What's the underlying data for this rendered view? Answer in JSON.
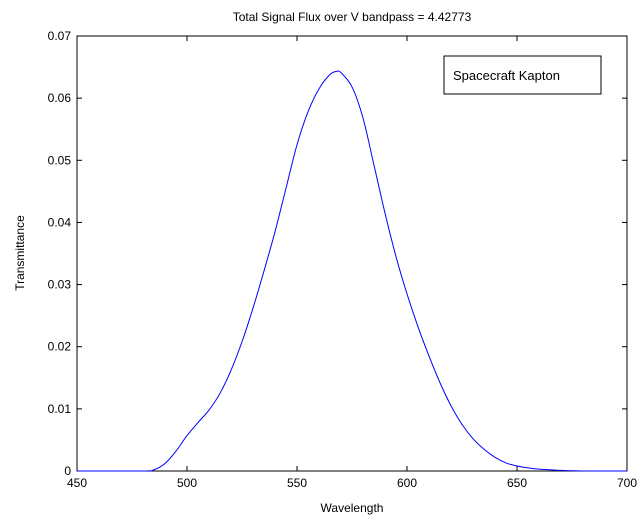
{
  "chart_data": {
    "type": "line",
    "title": "Total Signal Flux over V bandpass = 4.42773",
    "xlabel": "Wavelength",
    "ylabel": "Transmittance",
    "xlim": [
      450,
      700
    ],
    "ylim": [
      0,
      0.07
    ],
    "xticks": [
      "450",
      "500",
      "550",
      "600",
      "650",
      "700"
    ],
    "yticks": [
      "0",
      "0.01",
      "0.02",
      "0.03",
      "0.04",
      "0.05",
      "0.06",
      "0.07"
    ],
    "grid": false,
    "legend_position": "top-right",
    "legend": [
      "Spacecraft Kapton"
    ],
    "colors": {
      "line": "#0000ff",
      "axes": "#000000",
      "background": "#ffffff"
    },
    "series": [
      {
        "name": "Spacecraft Kapton",
        "x": [
          450,
          480,
          485,
          490,
          495,
          500,
          505,
          510,
          515,
          520,
          525,
          530,
          535,
          540,
          545,
          550,
          555,
          560,
          565,
          568,
          570,
          575,
          580,
          585,
          590,
          595,
          600,
          605,
          610,
          615,
          620,
          625,
          630,
          635,
          640,
          645,
          650,
          655,
          660,
          665,
          670,
          680,
          690,
          700
        ],
        "y": [
          0,
          0,
          0.0002,
          0.0012,
          0.0032,
          0.0057,
          0.0078,
          0.0098,
          0.0125,
          0.0162,
          0.0208,
          0.0262,
          0.0322,
          0.0385,
          0.0455,
          0.0525,
          0.0578,
          0.0615,
          0.0638,
          0.0643,
          0.0641,
          0.0618,
          0.0568,
          0.0492,
          0.0415,
          0.0345,
          0.0285,
          0.0232,
          0.0185,
          0.0142,
          0.0105,
          0.0075,
          0.0052,
          0.0035,
          0.0022,
          0.0013,
          0.0008,
          0.0005,
          0.0003,
          0.0002,
          0.0001,
          0,
          0,
          0
        ]
      }
    ]
  }
}
